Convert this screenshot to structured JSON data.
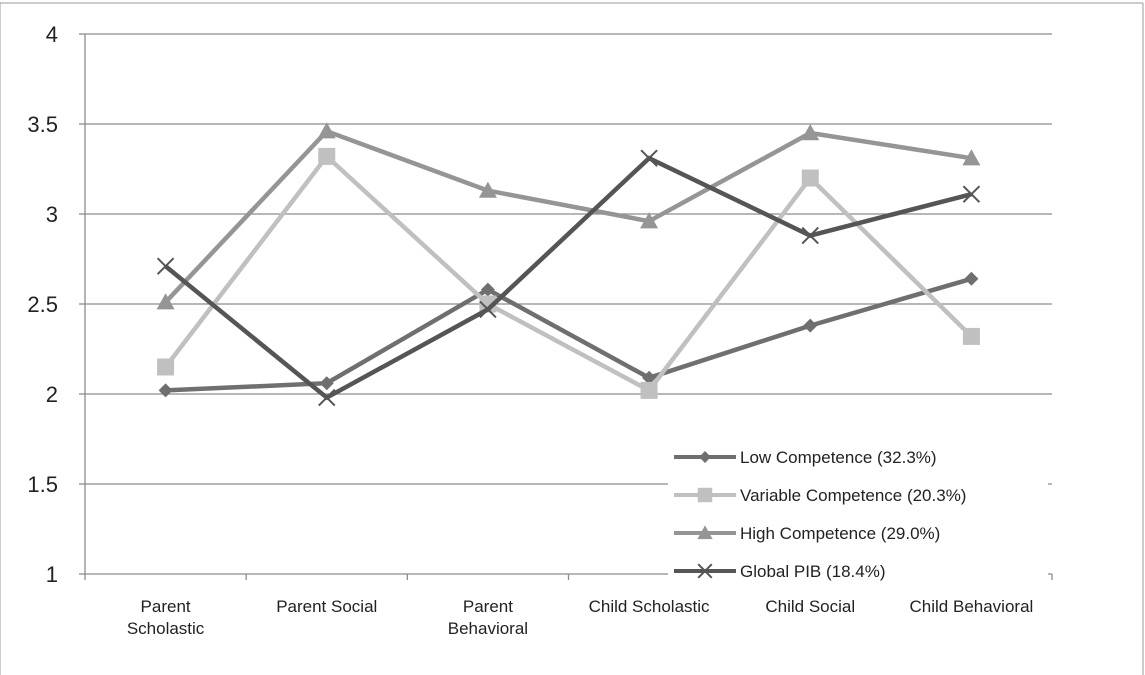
{
  "chart_data": {
    "type": "line",
    "title": "",
    "xlabel": "",
    "ylabel": "",
    "categories": [
      "Parent Scholastic",
      "Parent Social",
      "Parent Behavioral",
      "Child Scholastic",
      "Child Social",
      "Child Behavioral"
    ],
    "category_lines": [
      [
        "Parent",
        "Scholastic"
      ],
      [
        "Parent Social"
      ],
      [
        "Parent",
        "Behavioral"
      ],
      [
        "Child Scholastic"
      ],
      [
        "Child Social"
      ],
      [
        "Child Behavioral"
      ]
    ],
    "ylim": [
      1,
      4
    ],
    "yticks": [
      "1",
      "1.5",
      "2",
      "2.5",
      "3",
      "3.5",
      "4"
    ],
    "grid": true,
    "legend_position": "bottom-right",
    "series": [
      {
        "name": "Low Competence (32.3%)",
        "values": [
          2.02,
          2.06,
          2.58,
          2.09,
          2.38,
          2.64
        ],
        "color": "#6f6f6f",
        "marker": "diamond"
      },
      {
        "name": "Variable Competence (20.3%)",
        "values": [
          2.15,
          3.32,
          2.5,
          2.02,
          3.2,
          2.32
        ],
        "color": "#c0c0c0",
        "marker": "square"
      },
      {
        "name": "High Competence (29.0%)",
        "values": [
          2.51,
          3.46,
          3.13,
          2.96,
          3.45,
          3.31
        ],
        "color": "#959595",
        "marker": "triangle"
      },
      {
        "name": "Global PIB (18.4%)",
        "values": [
          2.71,
          1.98,
          2.47,
          3.31,
          2.88,
          3.11
        ],
        "color": "#555555",
        "marker": "x"
      }
    ]
  }
}
